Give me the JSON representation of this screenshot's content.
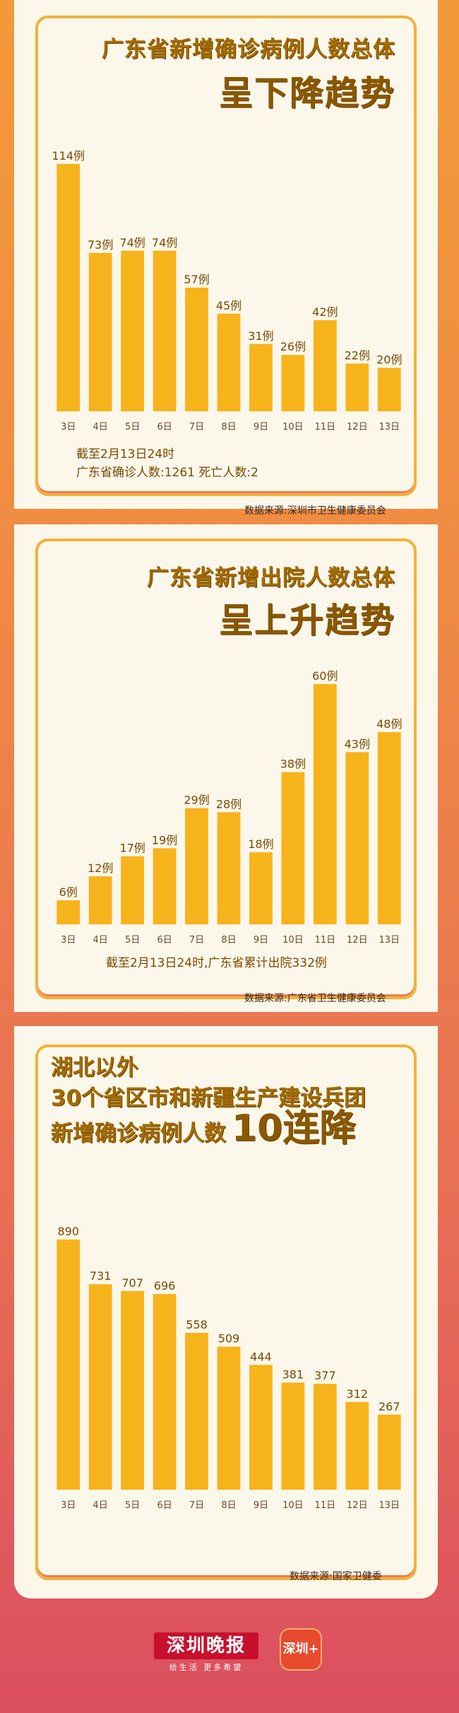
{
  "panels": [
    {
      "title_line1": "广东省新增确诊病例人数总体",
      "title_line2": "呈下降趋势",
      "note_line1": "截至2月13日24时",
      "note_line2": "广东省确诊人数:1261 死亡人数:2",
      "source": "数据来源:深圳市卫生健康委员会"
    },
    {
      "title_line1": "广东省新增出院人数总体",
      "title_line2": "呈上升趋势",
      "note_line1": "截至2月13日24时,广东省累计出院332例",
      "source": "数据来源:广东省卫生健康委员会"
    },
    {
      "title_line1": "湖北以外",
      "title_line2": "30个省区市和新疆生产建设兵团",
      "title_line3": "新增确诊病例人数",
      "title_highlight": "10连降",
      "source": "数据来源:国家卫健委"
    }
  ],
  "chart_data": [
    {
      "type": "bar",
      "categories": [
        "3日",
        "4日",
        "5日",
        "6日",
        "7日",
        "8日",
        "9日",
        "10日",
        "11日",
        "12日",
        "13日"
      ],
      "values": [
        114,
        73,
        74,
        74,
        57,
        45,
        31,
        26,
        42,
        22,
        20
      ],
      "value_suffix": "例",
      "ylim": [
        0,
        114
      ]
    },
    {
      "type": "bar",
      "categories": [
        "3日",
        "4日",
        "5日",
        "6日",
        "7日",
        "8日",
        "9日",
        "10日",
        "11日",
        "12日",
        "13日"
      ],
      "values": [
        6,
        12,
        17,
        19,
        29,
        28,
        18,
        38,
        60,
        43,
        48
      ],
      "value_suffix": "例",
      "ylim": [
        0,
        60
      ]
    },
    {
      "type": "bar",
      "categories": [
        "3日",
        "4日",
        "5日",
        "6日",
        "7日",
        "8日",
        "9日",
        "10日",
        "11日",
        "12日",
        "13日"
      ],
      "values": [
        890,
        731,
        707,
        696,
        558,
        509,
        444,
        381,
        377,
        312,
        267
      ],
      "value_suffix": "",
      "ylim": [
        0,
        890
      ]
    }
  ],
  "colors": {
    "bar": "#f7b31b",
    "label": "#7a4a00",
    "tick": "#6b4a2a"
  },
  "footer": {
    "logo_text": "深圳晚报",
    "slogan": "给生活 更多希望",
    "app_icon_text": "深圳+"
  }
}
